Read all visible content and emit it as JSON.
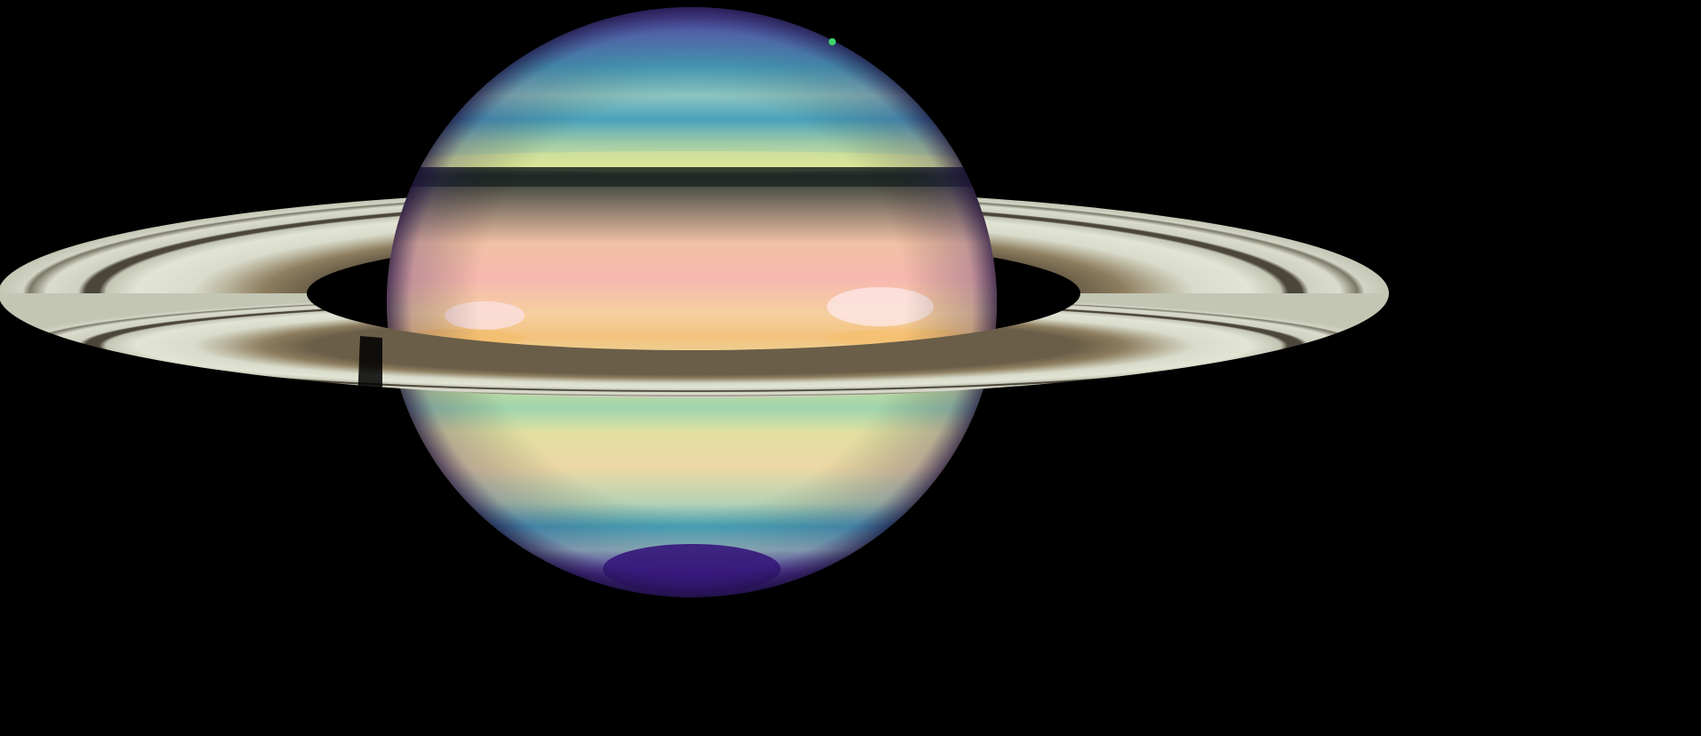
{
  "scene": {
    "subject": "planet-with-rings",
    "background_color": "#000000",
    "colors": {
      "ring_light": "#dfe2d2",
      "ring_mid": "#c9cbb8",
      "ring_shadow_band": "#5e5646",
      "ring_inner_brown": "#8a7a5e",
      "north_pole": "#5a4aa8",
      "north_cap_blue": "#3aa6b8",
      "north_band_green": "#bcd6a0",
      "southern_band_pink": "#f0b8a4",
      "southern_band_orange": "#f4c47e",
      "southern_band_yellow": "#e8e2a2",
      "southern_band_green": "#c8dc9c",
      "southern_band_teal": "#3fa6b6",
      "south_pole": "#4b1f8e",
      "moon_dot": "#3cd86a"
    }
  }
}
